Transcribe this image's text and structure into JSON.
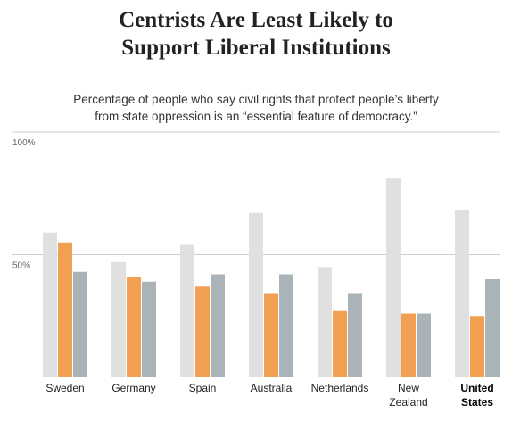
{
  "title_lines": [
    "Centrists Are Least Likely to",
    "Support Liberal Institutions"
  ],
  "subtitle_lines": [
    "Percentage of people who say civil rights that protect people’s liberty",
    "from state oppression is an “essential feature of democracy.”"
  ],
  "colors": {
    "left": "#e0e0e0",
    "center": "#f0a050",
    "right": "#a9b3b8",
    "gridline": "#cccccc",
    "baseline": "#bbbbbb"
  },
  "chart_data": {
    "type": "bar",
    "title": "Centrists Are Least Likely to Support Liberal Institutions",
    "subtitle": "Percentage of people who say civil rights that protect people’s liberty from state oppression is an “essential feature of democracy.”",
    "ylim": [
      0,
      100
    ],
    "y_ticks": [
      {
        "value": 100,
        "label": "100%"
      },
      {
        "value": 50,
        "label": "50%"
      }
    ],
    "grid": true,
    "legend": "none",
    "categories": [
      {
        "lines": [
          "Sweden"
        ],
        "emphasis": false
      },
      {
        "lines": [
          "Germany"
        ],
        "emphasis": false
      },
      {
        "lines": [
          "Spain"
        ],
        "emphasis": false
      },
      {
        "lines": [
          "Australia"
        ],
        "emphasis": false
      },
      {
        "lines": [
          "Netherlands"
        ],
        "emphasis": false
      },
      {
        "lines": [
          "New",
          "Zealand"
        ],
        "emphasis": false
      },
      {
        "lines": [
          "United",
          "States"
        ],
        "emphasis": true
      }
    ],
    "series": [
      {
        "color": "#e0e0e0",
        "values": [
          59,
          47,
          54,
          67,
          45,
          81,
          68
        ]
      },
      {
        "color": "#f0a050",
        "values": [
          55,
          41,
          37,
          34,
          27,
          26,
          25
        ]
      },
      {
        "color": "#a9b3b8",
        "values": [
          43,
          39,
          42,
          42,
          34,
          26,
          40
        ]
      }
    ]
  }
}
